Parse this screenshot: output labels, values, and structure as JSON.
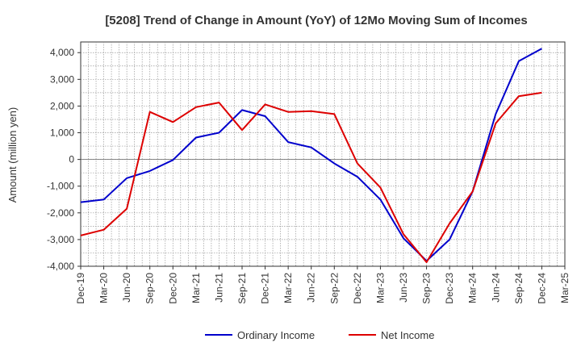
{
  "chart_data": {
    "type": "line",
    "title": "[5208]  Trend of Change in Amount (YoY) of 12Mo Moving Sum of Incomes",
    "xlabel": "",
    "ylabel": "Amount (million yen)",
    "ylim": [
      -4000,
      4400
    ],
    "yticks": [
      -4000,
      -3000,
      -2000,
      -1000,
      0,
      1000,
      2000,
      3000,
      4000
    ],
    "ytick_labels": [
      "-4,000",
      "-3,000",
      "-2,000",
      "-1,000",
      "0",
      "1,000",
      "2,000",
      "3,000",
      "4,000"
    ],
    "categories": [
      "Dec-19",
      "Mar-20",
      "Jun-20",
      "Sep-20",
      "Dec-20",
      "Mar-21",
      "Jun-21",
      "Sep-21",
      "Dec-21",
      "Mar-22",
      "Jun-22",
      "Sep-22",
      "Dec-22",
      "Mar-23",
      "Jun-23",
      "Sep-23",
      "Dec-23",
      "Mar-24",
      "Jun-24",
      "Sep-24",
      "Dec-24",
      "Mar-25"
    ],
    "grid": true,
    "legend_position": "bottom",
    "series": [
      {
        "name": "Ordinary Income",
        "color": "#0000cc",
        "values": [
          -1600,
          -1500,
          -700,
          -430,
          -20,
          820,
          1000,
          1850,
          1620,
          650,
          450,
          -150,
          -650,
          -1500,
          -2950,
          -3800,
          -3000,
          -1200,
          1700,
          3680,
          4150,
          null
        ]
      },
      {
        "name": "Net Income",
        "color": "#dd0000",
        "values": [
          -2850,
          -2630,
          -1850,
          1780,
          1400,
          1960,
          2130,
          1100,
          2060,
          1780,
          1810,
          1700,
          -150,
          -1050,
          -2800,
          -3850,
          -2400,
          -1200,
          1350,
          2370,
          2500,
          null
        ]
      }
    ]
  }
}
